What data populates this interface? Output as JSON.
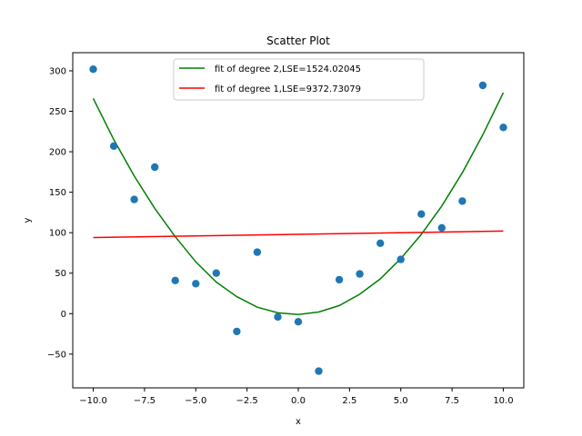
{
  "chart_data": {
    "type": "scatter",
    "title": "Scatter Plot",
    "xlabel": "x",
    "ylabel": "y",
    "xlim": [
      -11.0,
      11.0
    ],
    "ylim": [
      -91.7,
      322.4
    ],
    "xticks": [
      -10,
      -7.5,
      -5,
      -2.5,
      0,
      2.5,
      5,
      7.5,
      10
    ],
    "xtick_labels": [
      "−10.0",
      "−7.5",
      "−5.0",
      "−2.5",
      "0.0",
      "2.5",
      "5.0",
      "7.5",
      "10.0"
    ],
    "yticks": [
      -50,
      0,
      50,
      100,
      150,
      200,
      250,
      300
    ],
    "ytick_labels": [
      "−50",
      "0",
      "50",
      "100",
      "150",
      "200",
      "250",
      "300"
    ],
    "grid": false,
    "legend_position": "top-center",
    "scatter": {
      "color": "#1f77b4",
      "x": [
        -10,
        -9,
        -8,
        -7,
        -6,
        -5,
        -4,
        -3,
        -2,
        -1,
        0,
        1,
        2,
        3,
        4,
        5,
        6,
        7,
        8,
        9,
        10
      ],
      "y": [
        302,
        207,
        141,
        181,
        41,
        37,
        50,
        -22,
        76,
        -4,
        -10,
        -71,
        42,
        49,
        87,
        67,
        123,
        106,
        139,
        282,
        230
      ]
    },
    "series": [
      {
        "name": "fit of degree 2,LSE=1524.02045",
        "color": "#008000",
        "x": [
          -10,
          -9,
          -8,
          -7,
          -6,
          -5,
          -4,
          -3,
          -2,
          -1,
          0,
          1,
          2,
          3,
          4,
          5,
          6,
          7,
          8,
          9,
          10
        ],
        "y": [
          266,
          215,
          170,
          130,
          95,
          64,
          39,
          21,
          8,
          1,
          -1,
          2,
          10,
          24,
          43,
          68,
          98,
          133,
          174,
          221,
          273
        ]
      },
      {
        "name": "fit of degree 1,LSE=9372.73079",
        "color": "#ff0000",
        "x": [
          -10,
          10
        ],
        "y": [
          94,
          102
        ]
      }
    ]
  }
}
